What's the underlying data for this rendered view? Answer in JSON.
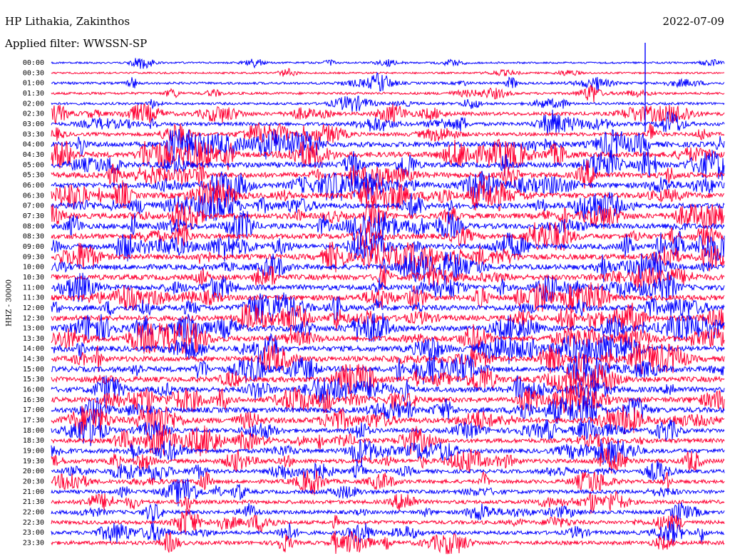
{
  "header": {
    "station": "HP Lithakia, Zakinthos",
    "filter_label": "Applied filter: WWSSN-SP",
    "date": "2022-07-09",
    "channel_label": "HHZ - 30000"
  },
  "chart_data": {
    "type": "line",
    "title": "HP Lithakia, Zakinthos",
    "subtitle": "Applied filter: WWSSN-SP",
    "ylabel": "HHZ - 30000",
    "row_labels": [
      "00:00",
      "00:30",
      "01:00",
      "01:30",
      "02:00",
      "02:30",
      "03:00",
      "03:30",
      "04:00",
      "04:30",
      "05:00",
      "05:30",
      "06:00",
      "06:30",
      "07:00",
      "07:30",
      "08:00",
      "08:30",
      "09:00",
      "09:30",
      "10:00",
      "10:30",
      "11:00",
      "11:30",
      "12:00",
      "12:30",
      "13:00",
      "13:30",
      "14:00",
      "14:30",
      "15:00",
      "15:30",
      "16:00",
      "16:30",
      "17:00",
      "17:30",
      "18:00",
      "18:30",
      "19:00",
      "19:30",
      "20:00",
      "20:30",
      "21:00",
      "21:30",
      "22:00",
      "22:30",
      "23:00",
      "23:30"
    ],
    "series_colors": [
      "#0000ff",
      "#ff0033"
    ],
    "grid": false,
    "legend": "none"
  }
}
